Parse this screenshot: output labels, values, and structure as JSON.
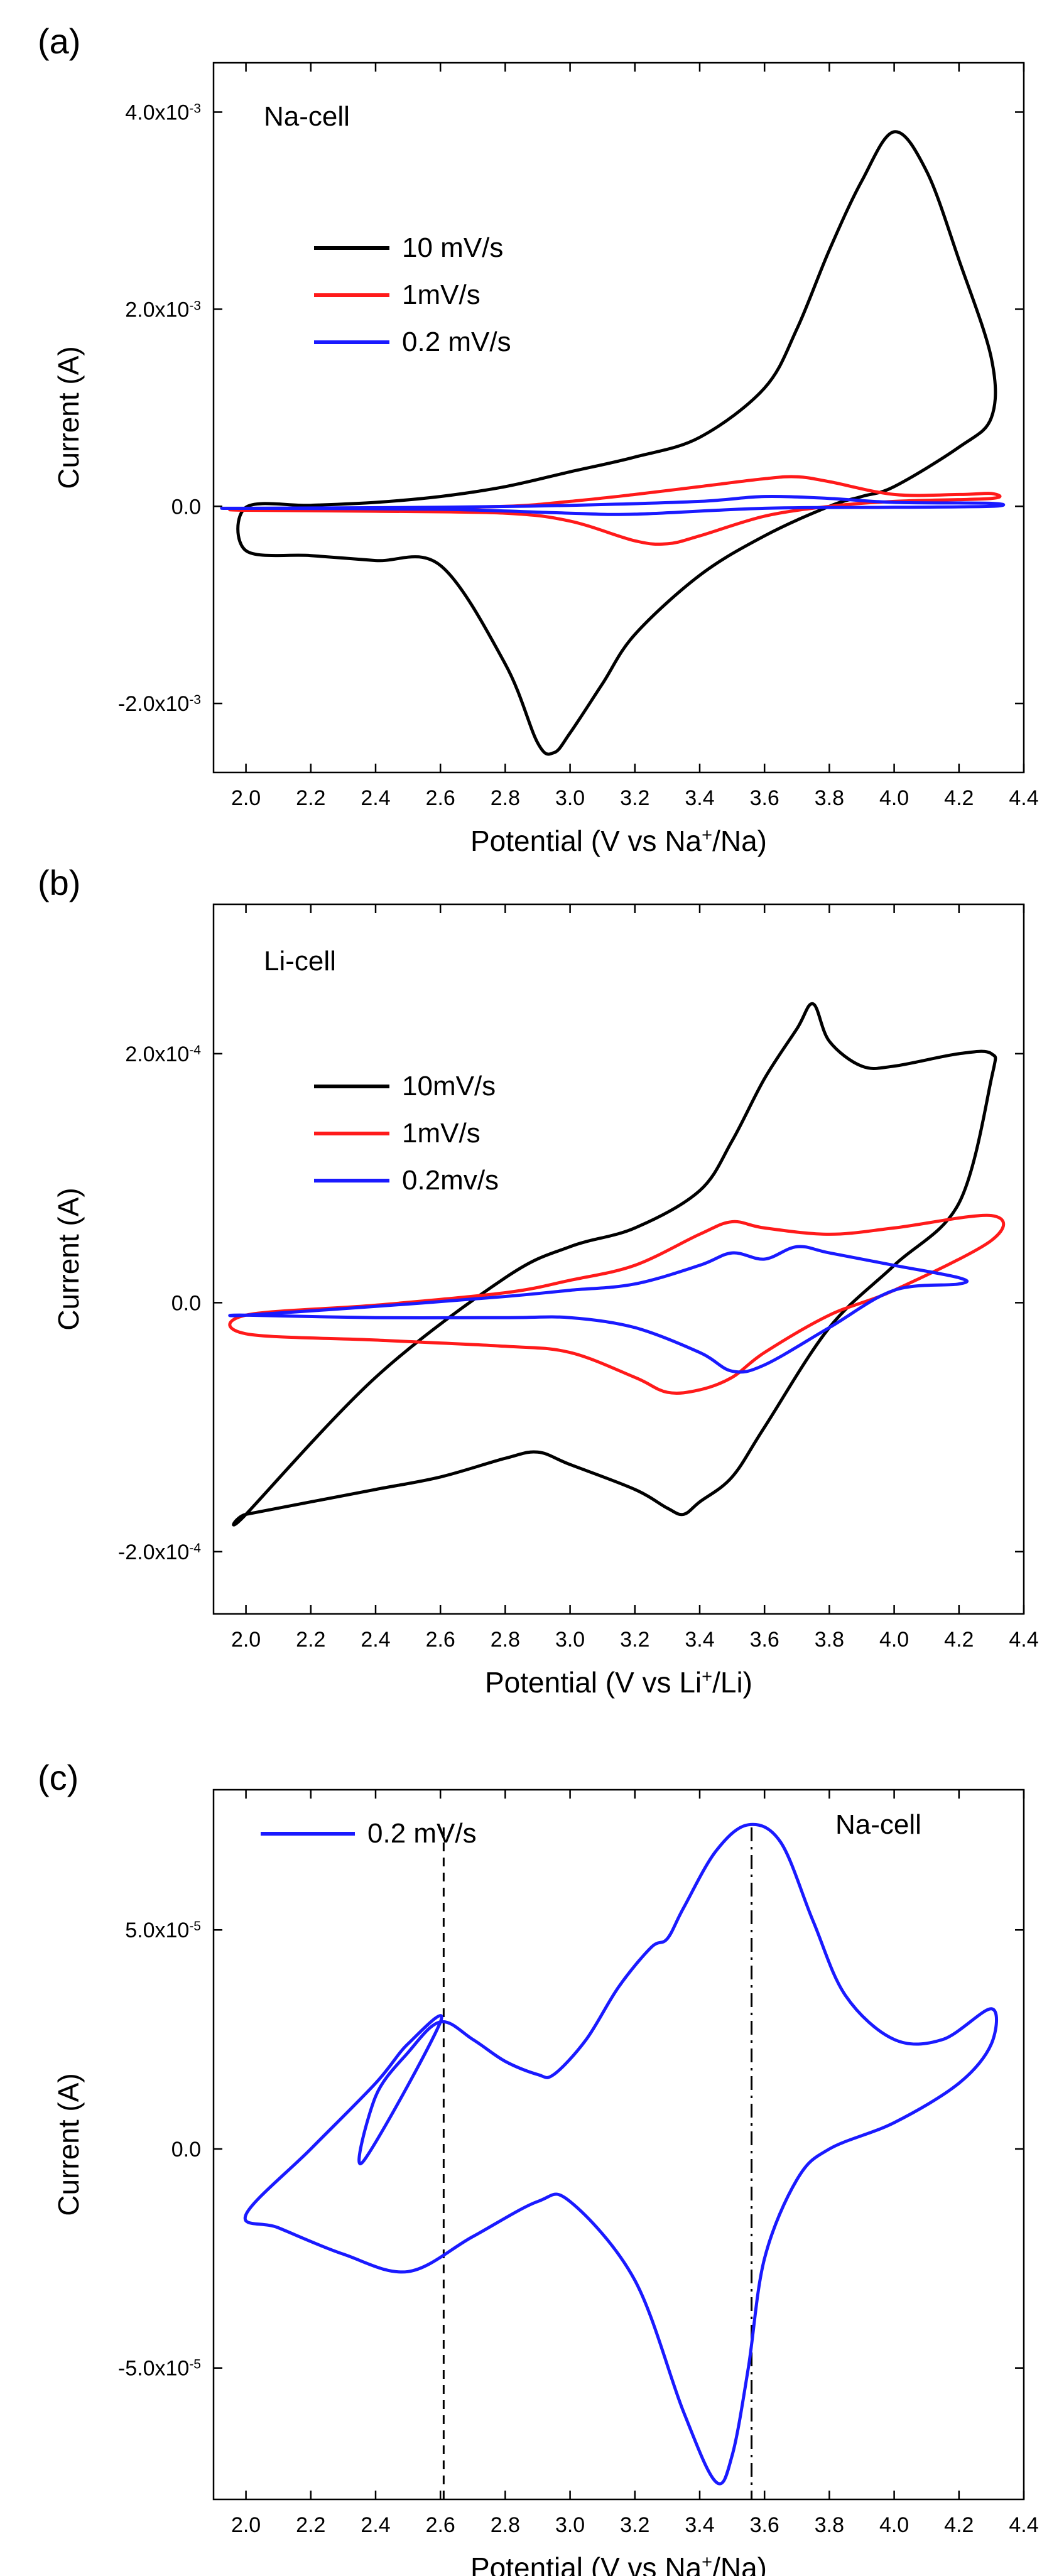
{
  "chart_data": [
    {
      "type": "line",
      "panel_label": "(a)",
      "annotation": "Na-cell",
      "xlabel": "Potential (V vs Na⁺/Na)",
      "ylabel": "Current (A)",
      "xlim": [
        1.9,
        4.4
      ],
      "ylim": [
        -0.0027,
        0.0045
      ],
      "x_ticks": [
        2.0,
        2.2,
        2.4,
        2.6,
        2.8,
        3.0,
        3.2,
        3.4,
        3.6,
        3.8,
        4.0,
        4.2,
        4.4
      ],
      "x_tick_labels": [
        "2.0",
        "2.2",
        "2.4",
        "2.6",
        "2.8",
        "3.0",
        "3.2",
        "3.4",
        "3.6",
        "3.8",
        "4.0",
        "4.2",
        "4.4"
      ],
      "y_ticks": [
        -0.002,
        0,
        0.002,
        0.004
      ],
      "y_tick_labels": [
        "-2.0x10⁻³",
        "0.0",
        "2.0x10⁻³",
        "4.0x10⁻³"
      ],
      "legend_position": "top-left",
      "series": [
        {
          "name": "10 mV/s",
          "color": "#000000",
          "closed": true,
          "x": [
            2.0,
            2.2,
            2.4,
            2.6,
            2.8,
            3.0,
            3.2,
            3.4,
            3.6,
            3.7,
            3.8,
            3.9,
            4.0,
            4.1,
            4.2,
            4.3,
            4.3,
            4.2,
            4.0,
            3.9,
            3.8,
            3.6,
            3.4,
            3.2,
            3.1,
            3.0,
            2.95,
            2.9,
            2.8,
            2.6,
            2.4,
            2.2,
            2.0
          ],
          "y": [
            -1e-05,
            1e-05,
            4e-05,
            0.0001,
            0.0002,
            0.00035,
            0.0005,
            0.0007,
            0.0012,
            0.0018,
            0.0026,
            0.0033,
            0.0038,
            0.0034,
            0.0025,
            0.0015,
            0.0009,
            0.0006,
            0.0002,
            0.0001,
            0.0,
            -0.0003,
            -0.0007,
            -0.0013,
            -0.0018,
            -0.0023,
            -0.0025,
            -0.0024,
            -0.0016,
            -0.0006,
            -0.00055,
            -0.0005,
            -0.00045
          ]
        },
        {
          "name": "1mV/s",
          "color": "#ff1a1a",
          "closed": true,
          "x": [
            2.0,
            2.4,
            2.8,
            3.0,
            3.2,
            3.4,
            3.6,
            3.7,
            3.8,
            4.0,
            4.2,
            4.3,
            4.3,
            4.0,
            3.8,
            3.6,
            3.4,
            3.3,
            3.2,
            3.0,
            2.8,
            2.4,
            2.0
          ],
          "y": [
            -3e-05,
            -2e-05,
            0.0,
            5e-05,
            0.00012,
            0.0002,
            0.00028,
            0.0003,
            0.00025,
            0.00012,
            0.00012,
            0.00013,
            8e-05,
            5e-05,
            0.0,
            -0.0001,
            -0.0003,
            -0.00038,
            -0.00035,
            -0.00015,
            -7e-05,
            -5e-05,
            -4e-05
          ]
        },
        {
          "name": "0.2 mV/s",
          "color": "#1a1aff",
          "closed": true,
          "x": [
            2.0,
            2.6,
            3.0,
            3.4,
            3.6,
            3.8,
            4.0,
            4.3,
            4.3,
            4.0,
            3.6,
            3.2,
            3.0,
            2.6,
            2.0
          ],
          "y": [
            -2e-05,
            -1e-05,
            1e-05,
            5e-05,
            0.0001,
            8e-05,
            4e-05,
            3e-05,
            0.0,
            -1e-05,
            -2e-05,
            -8e-05,
            -7e-05,
            -3e-05,
            -2e-05
          ]
        }
      ]
    },
    {
      "type": "line",
      "panel_label": "(b)",
      "annotation": "Li-cell",
      "xlabel": "Potential (V vs Li⁺/Li)",
      "ylabel": "Current (A)",
      "xlim": [
        1.9,
        4.4
      ],
      "ylim": [
        -0.00025,
        0.00032
      ],
      "x_ticks": [
        2.0,
        2.2,
        2.4,
        2.6,
        2.8,
        3.0,
        3.2,
        3.4,
        3.6,
        3.8,
        4.0,
        4.2,
        4.4
      ],
      "x_tick_labels": [
        "2.0",
        "2.2",
        "2.4",
        "2.6",
        "2.8",
        "3.0",
        "3.2",
        "3.4",
        "3.6",
        "3.8",
        "4.0",
        "4.2",
        "4.4"
      ],
      "y_ticks": [
        -0.0002,
        0,
        0.0002
      ],
      "y_tick_labels": [
        "-2.0x10⁻⁴",
        "0.0",
        "2.0x10⁻⁴"
      ],
      "legend_position": "center-left",
      "series": [
        {
          "name": "10mV/s",
          "color": "#000000",
          "closed": true,
          "x": [
            2.0,
            2.4,
            2.8,
            3.0,
            3.2,
            3.4,
            3.5,
            3.6,
            3.7,
            3.75,
            3.8,
            3.9,
            4.0,
            4.2,
            4.3,
            4.3,
            4.2,
            4.0,
            3.8,
            3.6,
            3.5,
            3.4,
            3.35,
            3.3,
            3.2,
            3.0,
            2.9,
            2.8,
            2.6,
            2.4,
            2.2,
            2.0
          ],
          "y": [
            -0.00017,
            -6e-05,
            2e-05,
            4.5e-05,
            6e-05,
            9e-05,
            0.00013,
            0.00018,
            0.00022,
            0.00024,
            0.00021,
            0.00019,
            0.00019,
            0.0002,
            0.0002,
            0.00018,
            8e-05,
            3e-05,
            -2e-05,
            -0.0001,
            -0.00014,
            -0.00016,
            -0.00017,
            -0.000165,
            -0.00015,
            -0.00013,
            -0.00012,
            -0.000125,
            -0.00014,
            -0.00015,
            -0.00016,
            -0.00017
          ]
        },
        {
          "name": "1mV/s",
          "color": "#ff1a1a",
          "closed": true,
          "x": [
            2.0,
            2.4,
            2.8,
            3.0,
            3.2,
            3.4,
            3.5,
            3.6,
            3.8,
            4.0,
            4.3,
            4.3,
            4.0,
            3.8,
            3.6,
            3.5,
            3.4,
            3.3,
            3.2,
            3.0,
            2.8,
            2.4,
            2.0
          ],
          "y": [
            -1e-05,
            -2e-06,
            8e-06,
            1.8e-05,
            3e-05,
            5.5e-05,
            6.5e-05,
            6e-05,
            5.5e-05,
            6e-05,
            7e-05,
            5e-05,
            1e-05,
            -1e-05,
            -4e-05,
            -6e-05,
            -7e-05,
            -7.2e-05,
            -6e-05,
            -4e-05,
            -3.5e-05,
            -3e-05,
            -2.5e-05
          ]
        },
        {
          "name": "0.2mv/s",
          "color": "#1a1aff",
          "closed": true,
          "x": [
            2.0,
            2.4,
            2.8,
            3.0,
            3.2,
            3.4,
            3.5,
            3.6,
            3.7,
            3.8,
            4.0,
            4.2,
            4.2,
            4.0,
            3.8,
            3.6,
            3.5,
            3.4,
            3.2,
            3.0,
            2.8,
            2.4,
            2.0
          ],
          "y": [
            -1e-05,
            -3e-06,
            5e-06,
            1e-05,
            1.5e-05,
            3e-05,
            4e-05,
            3.5e-05,
            4.5e-05,
            4e-05,
            3e-05,
            2e-05,
            1.5e-05,
            1e-05,
            -2e-05,
            -5e-05,
            -5.5e-05,
            -4e-05,
            -2e-05,
            -1.2e-05,
            -1.2e-05,
            -1.2e-05,
            -1e-05
          ]
        }
      ]
    },
    {
      "type": "line",
      "panel_label": "(c)",
      "annotation": "Na-cell",
      "xlabel": "Potential (V vs Na⁺/Na)",
      "ylabel": "Current (A)",
      "xlim": [
        1.9,
        4.4
      ],
      "ylim": [
        -8e-05,
        8.2e-05
      ],
      "x_ticks": [
        2.0,
        2.2,
        2.4,
        2.6,
        2.8,
        3.0,
        3.2,
        3.4,
        3.6,
        3.8,
        4.0,
        4.2,
        4.4
      ],
      "x_tick_labels": [
        "2.0",
        "2.2",
        "2.4",
        "2.6",
        "2.8",
        "3.0",
        "3.2",
        "3.4",
        "3.6",
        "3.8",
        "4.0",
        "4.2",
        "4.4"
      ],
      "y_ticks": [
        -5e-05,
        0,
        5e-05
      ],
      "y_tick_labels": [
        "-5.0x10⁻⁵",
        "0.0",
        "5.0x10⁻⁵"
      ],
      "legend_position": "top-left",
      "vertical_lines": [
        {
          "x": 2.61,
          "style": "dashed"
        },
        {
          "x": 3.56,
          "style": "dash-dot"
        }
      ],
      "series": [
        {
          "name": "0.2 mV/s",
          "color": "#1a1aff",
          "closed": true,
          "x": [
            2.36,
            2.4,
            2.5,
            2.6,
            2.7,
            2.8,
            2.9,
            2.95,
            3.05,
            3.15,
            3.25,
            3.3,
            3.35,
            3.45,
            3.55,
            3.65,
            3.75,
            3.85,
            4.0,
            4.15,
            4.3,
            4.3,
            4.2,
            4.0,
            3.8,
            3.7,
            3.6,
            3.55,
            3.5,
            3.45,
            3.35,
            3.2,
            3.0,
            2.9,
            2.7,
            2.5,
            2.3,
            2.1,
            2.0,
            2.2,
            2.4,
            2.5,
            2.6
          ],
          "y": [
            -3e-06,
            1.2e-05,
            2.2e-05,
            2.9e-05,
            2.5e-05,
            2e-05,
            1.7e-05,
            1.7e-05,
            2.5e-05,
            3.7e-05,
            4.6e-05,
            4.8e-05,
            5.5e-05,
            6.8e-05,
            7.4e-05,
            7e-05,
            5.2e-05,
            3.5e-05,
            2.5e-05,
            2.5e-05,
            3.2e-05,
            2.4e-05,
            1.5e-05,
            6e-06,
            0.0,
            -7e-06,
            -2.5e-05,
            -5e-05,
            -7e-05,
            -7.6e-05,
            -6e-05,
            -3e-05,
            -1.2e-05,
            -1.2e-05,
            -2e-05,
            -2.8e-05,
            -2.4e-05,
            -1.8e-05,
            -1.5e-05,
            0.0,
            1.5e-05,
            2.4e-05,
            2.9e-05
          ]
        }
      ]
    }
  ]
}
